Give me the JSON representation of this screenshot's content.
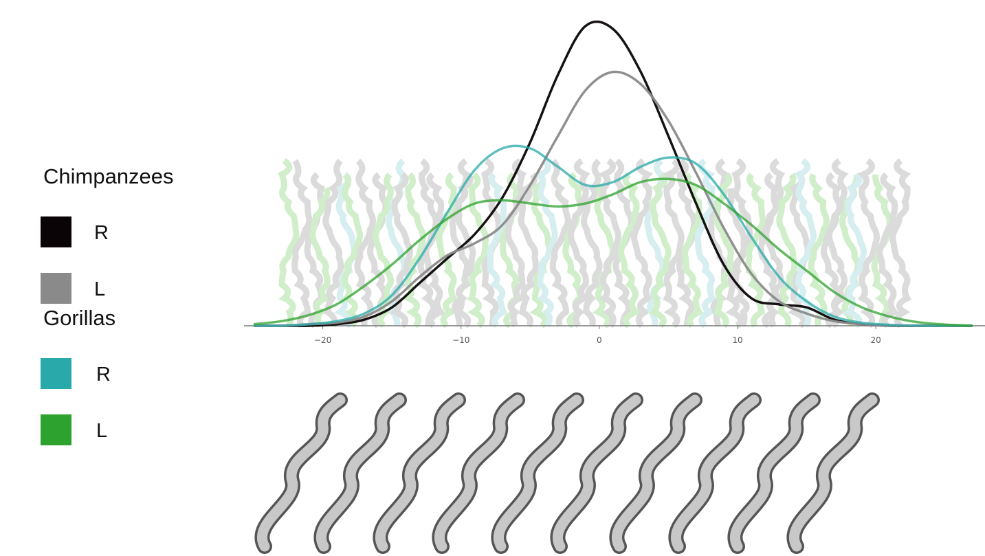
{
  "chart_data": {
    "type": "line",
    "x": [
      -25,
      -23,
      -21,
      -19,
      -17,
      -15,
      -13,
      -11,
      -9,
      -7,
      -5,
      -3,
      -1,
      1,
      3,
      5,
      7,
      9,
      11,
      13,
      15,
      17,
      19,
      21,
      23,
      25,
      27
    ],
    "xlim": [
      -25.7,
      27.9
    ],
    "xticks": [
      {
        "value": -20,
        "label": "−20"
      },
      {
        "value": -10,
        "label": "−10"
      },
      0,
      10,
      20
    ],
    "ylim": [
      0,
      1
    ],
    "groups": [
      {
        "name": "Chimpanzees",
        "series": [
          {
            "name": "R",
            "color": "#0a0406",
            "values": [
              0,
              0,
              0,
              0.005,
              0.02,
              0.06,
              0.14,
              0.22,
              0.3,
              0.42,
              0.6,
              0.82,
              0.98,
              0.97,
              0.83,
              0.62,
              0.4,
              0.2,
              0.09,
              0.07,
              0.06,
              0.02,
              0.005,
              0,
              0,
              0,
              0
            ]
          },
          {
            "name": "L",
            "color": "#8a8a8a",
            "values": [
              0,
              0,
              0.005,
              0.01,
              0.03,
              0.08,
              0.16,
              0.23,
              0.27,
              0.33,
              0.46,
              0.62,
              0.77,
              0.83,
              0.79,
              0.67,
              0.5,
              0.32,
              0.17,
              0.08,
              0.04,
              0.015,
              0.005,
              0,
              0,
              0,
              0
            ]
          }
        ]
      },
      {
        "name": "Gorillas",
        "series": [
          {
            "name": "R",
            "color": "#2aa9aa",
            "values": [
              0,
              0,
              0.005,
              0.015,
              0.04,
              0.1,
              0.22,
              0.37,
              0.51,
              0.58,
              0.58,
              0.52,
              0.46,
              0.47,
              0.52,
              0.55,
              0.53,
              0.43,
              0.29,
              0.16,
              0.08,
              0.03,
              0.01,
              0.003,
              0,
              0,
              0
            ]
          },
          {
            "name": "L",
            "color": "#2ea22e",
            "values": [
              0.005,
              0.015,
              0.035,
              0.07,
              0.13,
              0.2,
              0.28,
              0.35,
              0.4,
              0.41,
              0.4,
              0.39,
              0.4,
              0.43,
              0.47,
              0.48,
              0.46,
              0.4,
              0.33,
              0.25,
              0.18,
              0.11,
              0.06,
              0.03,
              0.012,
              0.004,
              0
            ]
          }
        ]
      }
    ]
  }
}
